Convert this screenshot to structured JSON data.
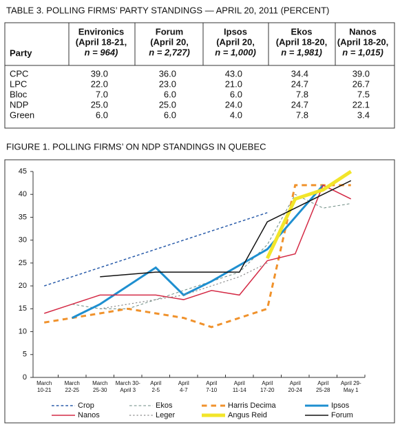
{
  "table": {
    "title": "TABLE 3. POLLING FIRMS’ PARTY STANDINGS — APRIL 20, 2011 (PERCENT)",
    "header": [
      [
        "Party"
      ],
      [
        "Environics",
        "(April 18-21,",
        "n = 964)"
      ],
      [
        "Forum",
        "(April 20,",
        "n = 2,727)"
      ],
      [
        "Ipsos",
        "(April 20,",
        "n = 1,000)"
      ],
      [
        "Ekos",
        "(April 18-20,",
        "n = 1,981)"
      ],
      [
        "Nanos",
        "(April 18-20,",
        "n = 1,015)"
      ]
    ],
    "rows": [
      [
        "CPC",
        "39.0",
        "36.0",
        "43.0",
        "34.4",
        "39.0"
      ],
      [
        "LPC",
        "22.0",
        "23.0",
        "21.0",
        "24.7",
        "26.7"
      ],
      [
        "Bloc",
        "7.0",
        "6.0",
        "6.0",
        "7.8",
        "7.5"
      ],
      [
        "NDP",
        "25.0",
        "25.0",
        "24.0",
        "24.7",
        "22.1"
      ],
      [
        "Green",
        "6.0",
        "6.0",
        "4.0",
        "7.8",
        "3.4"
      ]
    ]
  },
  "chart_data": {
    "type": "line",
    "title": "FIGURE 1. POLLING FIRMS’ ON NDP STANDINGS IN QUEBEC",
    "categories": [
      [
        "March",
        "10-21"
      ],
      [
        "March",
        "22-25"
      ],
      [
        "March",
        "25-30"
      ],
      [
        "March 30-",
        "April 3"
      ],
      [
        "April",
        "2-5"
      ],
      [
        "April",
        "4-7"
      ],
      [
        "April",
        "7-10"
      ],
      [
        "April",
        "11-14"
      ],
      [
        "April",
        "17-20"
      ],
      [
        "April",
        "20-24"
      ],
      [
        "April",
        "25-28"
      ],
      [
        "April 29-",
        "May 1"
      ]
    ],
    "ylim": [
      0,
      45
    ],
    "yticks": [
      0,
      5,
      10,
      15,
      20,
      25,
      30,
      35,
      40,
      45
    ],
    "series": [
      {
        "name": "Crop",
        "color": "#2a5caa",
        "style": "dashed",
        "width": 1.5,
        "values": [
          20,
          22,
          24,
          26,
          28,
          30,
          32,
          34,
          36,
          null,
          null,
          null
        ]
      },
      {
        "name": "Ekos",
        "color": "#6a8a80",
        "style": "dashed",
        "width": 1,
        "values": [
          null,
          16,
          15,
          15,
          17,
          19,
          21,
          23,
          29,
          40,
          37,
          38
        ]
      },
      {
        "name": "Harris Decima",
        "color": "#f0922c",
        "style": "dashed",
        "width": 3,
        "values": [
          12,
          13,
          14,
          15,
          14,
          13,
          11,
          13,
          15,
          42,
          42,
          42
        ]
      },
      {
        "name": "Ipsos",
        "color": "#1e8fd0",
        "style": "solid",
        "width": 3,
        "values": [
          null,
          13,
          16,
          20,
          24,
          18,
          21,
          24.5,
          28,
          35,
          42,
          null
        ]
      },
      {
        "name": "Nanos",
        "color": "#d42a45",
        "style": "solid",
        "width": 1.5,
        "values": [
          14,
          16,
          18,
          18,
          18,
          17,
          19,
          18,
          25.5,
          27,
          42,
          39
        ]
      },
      {
        "name": "Leger",
        "color": "#8a8a8a",
        "style": "dotted",
        "width": 1.2,
        "values": [
          null,
          null,
          15,
          16,
          17,
          18,
          20,
          22,
          25,
          null,
          null,
          null
        ]
      },
      {
        "name": "Angus Reid",
        "color": "#f2e52a",
        "style": "solid",
        "width": 5,
        "values": [
          null,
          null,
          null,
          null,
          null,
          null,
          null,
          null,
          26,
          39,
          41,
          45
        ]
      },
      {
        "name": "Forum",
        "color": "#111111",
        "style": "solid",
        "width": 1.5,
        "values": [
          null,
          null,
          22,
          22.5,
          23,
          23,
          23,
          23,
          34,
          37,
          40,
          43
        ]
      }
    ]
  }
}
